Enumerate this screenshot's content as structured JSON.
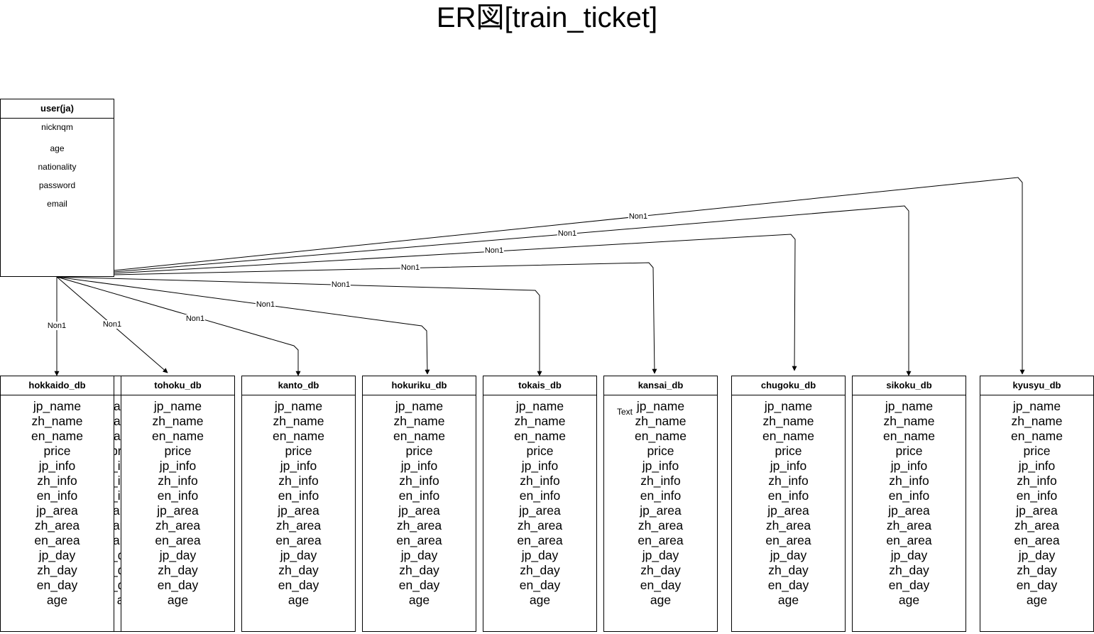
{
  "title": "ER図[train_ticket]",
  "user": {
    "name": "user(ja)",
    "attributes": [
      "nicknqm",
      "age",
      "nationality",
      "password",
      "email"
    ]
  },
  "db_attributes": [
    "jp_name",
    "zh_name",
    "en_name",
    "price",
    "jp_info",
    "zh_info",
    "en_info",
    "jp_area",
    "zh_area",
    "en_area",
    "jp_day",
    "zh_day",
    "en_day",
    "age"
  ],
  "tables": [
    {
      "id": "tokais-back",
      "name": "tokais_db"
    },
    {
      "id": "hokkaido",
      "name": "hokkaido_db"
    },
    {
      "id": "tohoku",
      "name": "tohoku_db"
    },
    {
      "id": "kanto",
      "name": "kanto_db"
    },
    {
      "id": "hokuriku",
      "name": "hokuriku_db"
    },
    {
      "id": "tokais",
      "name": "tokais_db"
    },
    {
      "id": "kansai",
      "name": "kansai_db"
    },
    {
      "id": "chugoku",
      "name": "chugoku_db"
    },
    {
      "id": "sikoku",
      "name": "sikoku_db"
    },
    {
      "id": "kyusyu",
      "name": "kyusyu_db"
    }
  ],
  "relations": [
    {
      "to": "hokkaido",
      "label": "Non1"
    },
    {
      "to": "tohoku",
      "label": "Non1"
    },
    {
      "to": "kanto",
      "label": "Non1"
    },
    {
      "to": "hokuriku",
      "label": "Non1"
    },
    {
      "to": "tokais",
      "label": "Non1"
    },
    {
      "to": "kansai",
      "label": "Non1"
    },
    {
      "to": "chugoku",
      "label": "Non1"
    },
    {
      "to": "sikoku",
      "label": "Non1"
    },
    {
      "to": "kyusyu",
      "label": "Non1"
    }
  ],
  "free_text": "Text"
}
